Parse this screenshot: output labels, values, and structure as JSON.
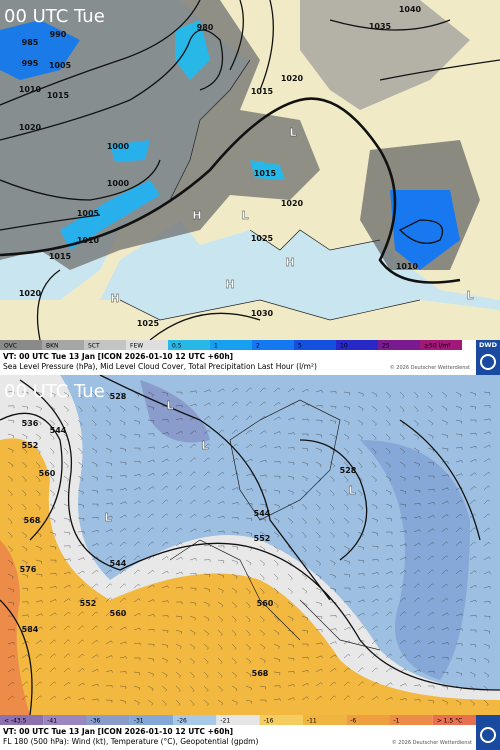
{
  "top_panel": {
    "time": "00 UTC Tue",
    "labels": [
      "985",
      "990",
      "995",
      "1005",
      "1010",
      "1015",
      "1020",
      "1000",
      "1000",
      "1005",
      "1010",
      "1015",
      "1020",
      "980",
      "1015",
      "1020",
      "1015",
      "1020",
      "1025",
      "1030",
      "1025",
      "1040",
      "1035",
      "1010",
      "H",
      "H",
      "H",
      "H",
      "L",
      "L",
      "L"
    ],
    "legend": [
      {
        "label": "OVC",
        "color": "#8a8a8a"
      },
      {
        "label": "BKN",
        "color": "#a6a6a6"
      },
      {
        "label": "SCT",
        "color": "#c4c4c4"
      },
      {
        "label": "FEW",
        "color": "#dedede"
      },
      {
        "label": "0.5",
        "color": "#28b8e8"
      },
      {
        "label": "1",
        "color": "#18a0f0"
      },
      {
        "label": "2",
        "color": "#1478f0"
      },
      {
        "label": "5",
        "color": "#1450e0"
      },
      {
        "label": "10",
        "color": "#2828c8"
      },
      {
        "label": "25",
        "color": "#7a1a90"
      },
      {
        "label": "≥50 l/m²",
        "color": "#a01878"
      }
    ],
    "valid": "VT: 00 UTC Tue   13 Jan [ICON 2026-01-10 12 UTC +60h]",
    "description": "Sea Level Pressure (hPa), Mid Level Cloud Cover, Total Precipitation Last Hour (l/m²)",
    "copyright": "© 2026 Deutscher Wetterdienst",
    "logo": "DWD"
  },
  "bottom_panel": {
    "time": "00 UTC Tue",
    "labels": [
      "528",
      "536",
      "544",
      "552",
      "560",
      "568",
      "576",
      "584",
      "544",
      "552",
      "560",
      "544",
      "552",
      "560",
      "568",
      "528",
      "L",
      "L",
      "L",
      "L"
    ],
    "legend": [
      {
        "label": "< -43.5",
        "color": "#8c70b0"
      },
      {
        "label": "-41",
        "color": "#9a86c0"
      },
      {
        "label": "-36",
        "color": "#8a9ccc"
      },
      {
        "label": "-31",
        "color": "#86a8d8"
      },
      {
        "label": "-26",
        "color": "#a8c8e8"
      },
      {
        "label": "-21",
        "color": "#e6e6e6"
      },
      {
        "label": "-16",
        "color": "#f4cc60"
      },
      {
        "label": "-11",
        "color": "#f0b440"
      },
      {
        "label": "-6",
        "color": "#eea040"
      },
      {
        "label": "-1",
        "color": "#ec8c48"
      },
      {
        "label": "> 1.5 °C",
        "color": "#e87050"
      }
    ],
    "valid": "VT: 00 UTC Tue   13 Jan [ICON 2026-01-10 12 UTC +60h]",
    "description": "FL 180 (500 hPa): Wind (kt), Temperature (°C), Geopotential (gpdm)",
    "copyright": "© 2026 Deutscher Wetterdienst"
  }
}
